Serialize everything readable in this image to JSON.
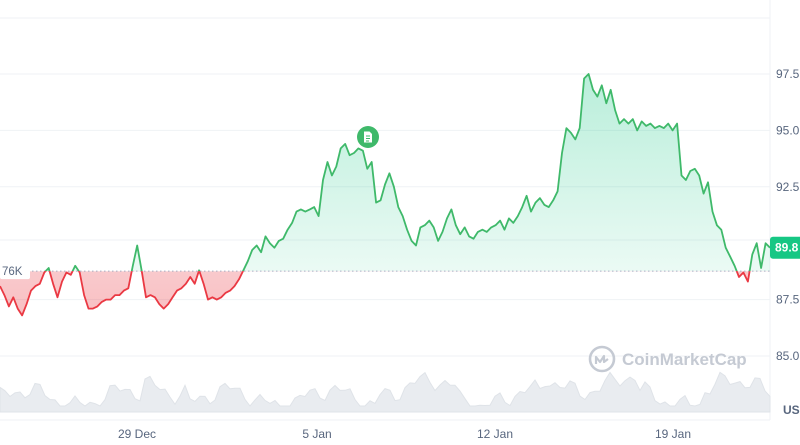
{
  "chart_data": {
    "type": "area",
    "x_ticks": [
      "29 Dec",
      "5 Jan",
      "12 Jan",
      "19 Jan"
    ],
    "y_ticks": [
      "97.5",
      "95.0",
      "92.5",
      "87.5",
      "85.0"
    ],
    "ylim": [
      84,
      99
    ],
    "reference_line": 88.76,
    "reference_label": "76K",
    "current_price": "89.8",
    "currency_label": "US",
    "watermark": "CoinMarketCap",
    "colors": {
      "up": "#16c784",
      "up_line": "#3fb96a",
      "down": "#ea3943",
      "grid": "#eff2f5",
      "volume": "#eff2f5"
    },
    "series": [
      {
        "values": [
          88.1,
          87.7,
          87.2,
          87.6,
          87.1,
          86.8,
          87.3,
          87.9,
          88.1,
          88.2,
          88.7,
          88.9,
          88.2,
          87.6,
          88.3,
          88.7,
          88.6,
          89.0,
          88.7,
          87.7,
          87.1,
          87.1,
          87.2,
          87.4,
          87.5,
          87.5,
          87.7,
          87.7,
          87.9,
          88.0,
          89.0,
          89.9,
          88.8,
          87.6,
          87.7,
          87.6,
          87.3,
          87.1,
          87.3,
          87.6,
          87.9,
          88.0,
          88.2,
          88.5,
          88.2,
          88.8,
          88.2,
          87.5,
          87.6,
          87.5,
          87.6,
          87.8,
          87.9,
          88.1,
          88.4,
          88.8,
          89.2,
          89.7,
          89.9,
          89.6,
          90.3,
          90.0,
          89.8,
          90.1,
          90.2,
          90.6,
          90.9,
          91.4,
          91.5,
          91.4,
          91.5,
          91.6,
          91.2,
          92.8,
          93.6,
          93.0,
          93.4,
          94.2,
          94.4,
          93.9,
          94.0,
          94.2,
          94.1,
          93.3,
          93.6,
          91.8,
          91.9,
          92.6,
          93.1,
          92.5,
          91.6,
          91.2,
          90.6,
          90.1,
          89.9,
          90.7,
          90.8,
          91.0,
          90.7,
          90.1,
          90.5,
          91.1,
          91.5,
          90.8,
          90.4,
          90.7,
          90.3,
          90.2,
          90.5,
          90.6,
          90.5,
          90.7,
          90.8,
          91.0,
          90.6,
          91.1,
          90.9,
          91.2,
          91.6,
          92.1,
          91.4,
          91.8,
          92.0,
          91.7,
          91.6,
          91.9,
          92.3,
          94.0,
          95.1,
          94.9,
          94.6,
          95.1,
          97.3,
          97.5,
          96.8,
          96.5,
          97.0,
          96.2,
          96.8,
          95.9,
          95.3,
          95.5,
          95.3,
          95.5,
          95.0,
          95.4,
          95.2,
          95.3,
          95.1,
          95.2,
          95.1,
          95.3,
          95.0,
          95.3,
          93.0,
          92.8,
          93.2,
          93.3,
          93.0,
          92.2,
          92.7,
          91.4,
          90.8,
          90.6,
          89.8,
          89.4,
          89.0,
          88.5,
          88.7,
          88.3,
          89.5,
          90.0,
          88.9,
          90.0,
          89.8
        ]
      }
    ]
  }
}
